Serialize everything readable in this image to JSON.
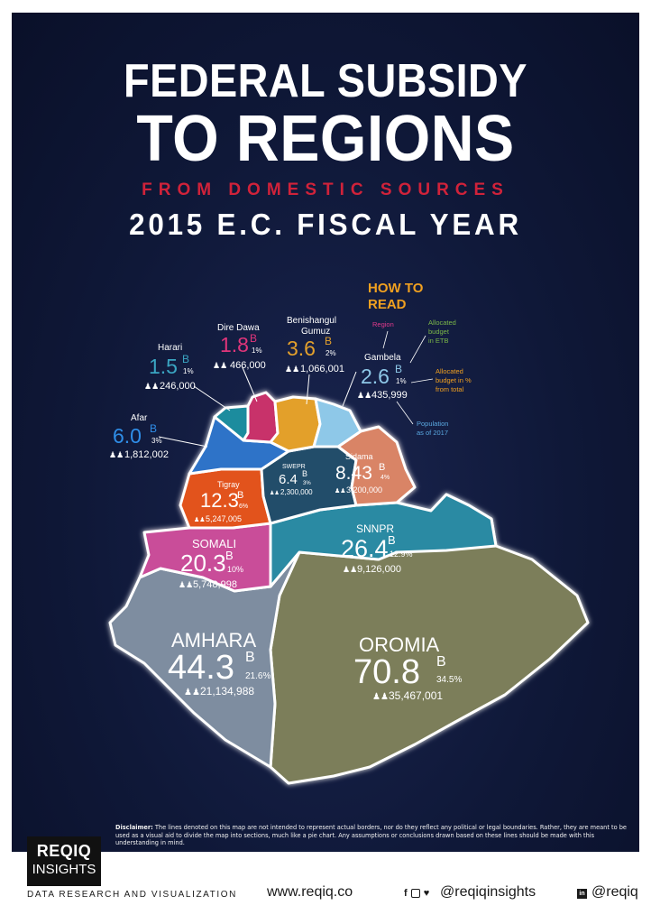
{
  "title": {
    "line1": "FEDERAL SUBSIDY",
    "line2": "TO REGIONS",
    "line3": "FROM DOMESTIC SOURCES",
    "line4": "2015 E.C. FISCAL YEAR"
  },
  "how_to_read": {
    "heading_line1": "HOW TO",
    "heading_line2": "READ",
    "region": "Region",
    "allocated": [
      "Allocated",
      "budget",
      "in ETB"
    ],
    "percent": [
      "Allocated",
      "budget in %",
      "from total"
    ],
    "population": [
      "Population",
      "as of 2017"
    ]
  },
  "regions": {
    "dire_dawa": {
      "name": "Dire Dawa",
      "budget": "1.8",
      "unit": "B",
      "pct": "1%",
      "pop": "466,000"
    },
    "benishangul": {
      "name_line1": "Benishangul",
      "name_line2": "Gumuz",
      "budget": "3.6",
      "unit": "B",
      "pct": "2%",
      "pop": "1,066,001"
    },
    "harari": {
      "name": "Harari",
      "budget": "1.5",
      "unit": "B",
      "pct": "1%",
      "pop": "246,000"
    },
    "gambela": {
      "name": "Gambela",
      "budget": "2.6",
      "unit": "B",
      "pct": "1%",
      "pop": "435,999"
    },
    "afar": {
      "name": "Afar",
      "budget": "6.0",
      "unit": "B",
      "pct": "3%",
      "pop": "1,812,002"
    },
    "sweprr": {
      "name": "SWEPR",
      "budget": "6.4",
      "unit": "B",
      "pct": "3%",
      "pop": "2,300,000"
    },
    "sidama": {
      "name": "Sidama",
      "budget": "8.43",
      "unit": "B",
      "pct": "4%",
      "pop": "3,200,000"
    },
    "tigray": {
      "name": "Tigray",
      "budget": "12.3",
      "unit": "B",
      "pct": "6%",
      "pop": "5,247,005"
    },
    "snnpr": {
      "name": "SNNPR",
      "budget": "26.4",
      "unit": "B",
      "pct": "12.9%",
      "pop": "9,126,000"
    },
    "somali": {
      "name": "SOMALI",
      "budget": "20.3",
      "unit": "B",
      "pct": "10%",
      "pop": "5,748,998"
    },
    "amhara": {
      "name": "AMHARA",
      "budget": "44.3",
      "unit": "B",
      "pct": "21.6%",
      "pop": "21,134,988"
    },
    "oromia": {
      "name": "OROMIA",
      "budget": "70.8",
      "unit": "B",
      "pct": "34.5%",
      "pop": "35,467,001"
    }
  },
  "colors": {
    "background": "#0d1533",
    "harari": "#1f8c9e",
    "dire_dawa": "#c8336a",
    "benishangul": "#e3a02c",
    "gambela": "#8ec8e8",
    "afar": "#2f73c8",
    "sweprr": "#234e6b",
    "sidama": "#d98466",
    "tigray": "#e2521b",
    "snnpr": "#2b8aa3",
    "somali": "#c94d99",
    "amhara": "#7e8da0",
    "oromia": "#7c7e5a",
    "title_red": "#d0223a",
    "howto_orange": "#f0a020",
    "howto_pink": "#e03a8c",
    "howto_green": "#7ab648",
    "howto_blue": "#5aa8e0"
  },
  "disclaimer": {
    "label": "Disclaimer:",
    "text": "The lines denoted on this map are not intended to represent actual borders, nor do they reflect any political or legal boundaries. Rather, they are meant to be used as a visual aid to divide the map into sections, much like a pie chart. Any assumptions or conclusions drawn based on these lines should be made with this understanding in mind."
  },
  "footer": {
    "logo_line1": "REQIQ",
    "logo_line2": "INSIGHTS",
    "tagline": "DATA RESEARCH AND VISUALIZATION",
    "website": "www.reqiq.co",
    "social_handle": "@reqiqinsights",
    "linkedin_handle": "@reqiq"
  }
}
